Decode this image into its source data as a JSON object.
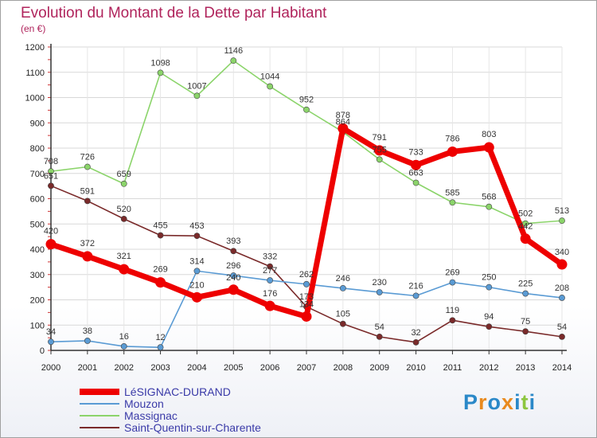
{
  "chart_data": {
    "type": "line",
    "title": "Evolution du Montant de la Dette par Habitant",
    "subtitle": "(en €)",
    "xlabel": "",
    "ylabel": "",
    "x": [
      "2000",
      "2001",
      "2002",
      "2003",
      "2004",
      "2005",
      "2006",
      "2007",
      "2008",
      "2009",
      "2010",
      "2011",
      "2012",
      "2013",
      "2014"
    ],
    "ylim": [
      0,
      1200
    ],
    "yticks": [
      0,
      100,
      200,
      300,
      400,
      500,
      600,
      700,
      800,
      900,
      1000,
      1100,
      1200
    ],
    "legend_position": "bottom-left",
    "series": [
      {
        "name": "LéSIGNAC-DURAND",
        "color": "#ee0000",
        "values": [
          420,
          372,
          321,
          269,
          210,
          240,
          176,
          134,
          878,
          791,
          733,
          786,
          803,
          442,
          340
        ]
      },
      {
        "name": "Mouzon",
        "color": "#5a9bd4",
        "values": [
          34,
          38,
          16,
          12,
          314,
          296,
          277,
          262,
          246,
          230,
          216,
          269,
          250,
          225,
          208
        ]
      },
      {
        "name": "Massignac",
        "color": "#8bd46a",
        "values": [
          708,
          726,
          659,
          1098,
          1007,
          1146,
          1044,
          952,
          864,
          755,
          663,
          585,
          568,
          502,
          513
        ]
      },
      {
        "name": "Saint-Quentin-sur-Charente",
        "color": "#7a2a2a",
        "values": [
          651,
          591,
          520,
          455,
          453,
          393,
          332,
          173,
          105,
          54,
          32,
          119,
          94,
          75,
          54
        ]
      }
    ]
  },
  "logo": {
    "text": "Proxiti",
    "letters": [
      "P",
      "r",
      "o",
      "x",
      "i",
      "t",
      "i"
    ],
    "colors": [
      "#2a88c8",
      "#e98a1e",
      "#2a88c8",
      "#e98a1e",
      "#2a88c8",
      "#8dc63f",
      "#2a88c8"
    ]
  }
}
